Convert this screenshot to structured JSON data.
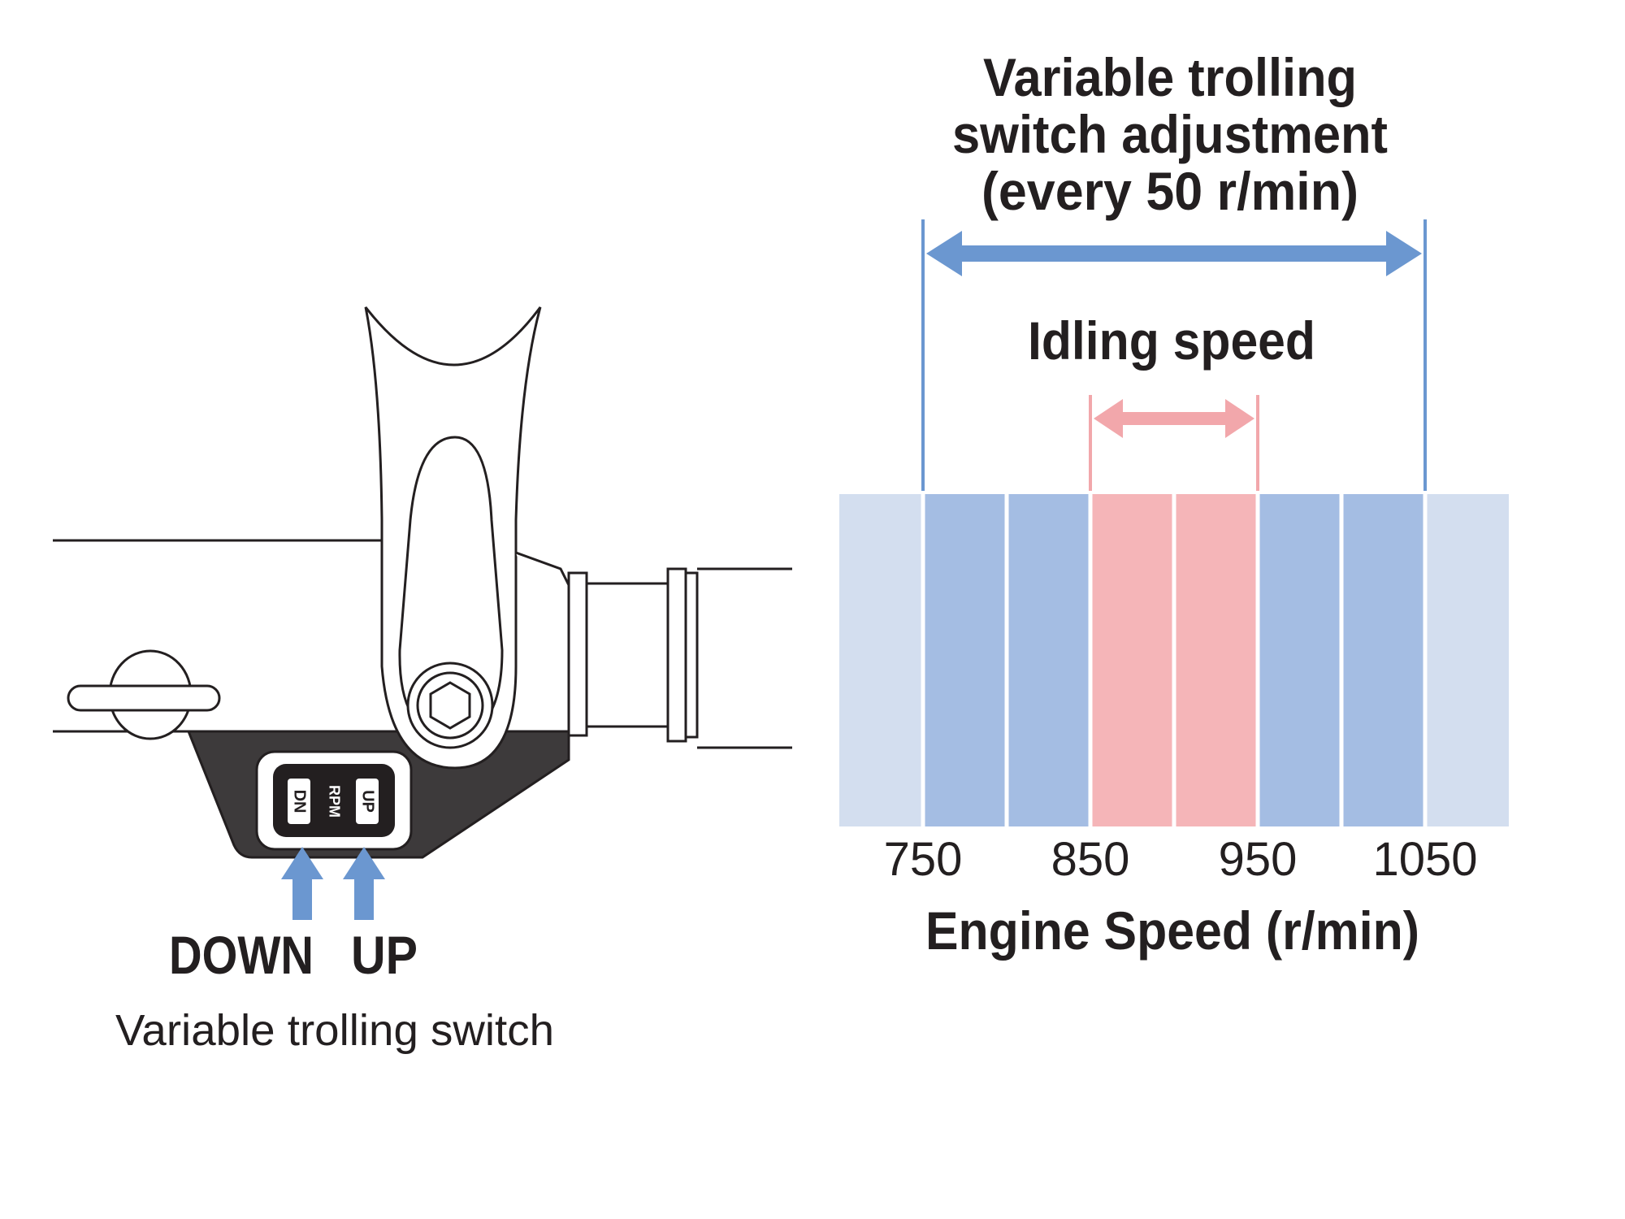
{
  "switch_panel": {
    "down_label": "DOWN",
    "up_label": "UP",
    "caption": "Variable trolling switch",
    "button_dn": "DN",
    "button_rpm": "RPM",
    "button_up": "UP"
  },
  "chart": {
    "adjustment_title_line1": "Variable trolling",
    "adjustment_title_line2": "switch adjustment",
    "adjustment_title_line3": "(every 50 r/min)",
    "idling_title": "Idling speed",
    "xlabel": "Engine Speed (r/min)",
    "colors": {
      "adjust_arrow": "#6b97d0",
      "idle_arrow": "#f2a7ab",
      "band_outer": "#d3deef",
      "band_adjust": "#a4bde3",
      "band_idle": "#f5b5b8"
    }
  },
  "chart_data": {
    "type": "bar",
    "ticks": [
      "750",
      "850",
      "950",
      "1050"
    ],
    "tick_values": [
      750,
      850,
      950,
      1050
    ],
    "step": 50,
    "xlim": [
      700,
      1100
    ],
    "bands": [
      {
        "from": 700,
        "to": 750,
        "kind": "outer"
      },
      {
        "from": 750,
        "to": 800,
        "kind": "adjust"
      },
      {
        "from": 800,
        "to": 850,
        "kind": "adjust"
      },
      {
        "from": 850,
        "to": 900,
        "kind": "idle"
      },
      {
        "from": 900,
        "to": 950,
        "kind": "idle"
      },
      {
        "from": 950,
        "to": 1000,
        "kind": "adjust"
      },
      {
        "from": 1000,
        "to": 1050,
        "kind": "adjust"
      },
      {
        "from": 1050,
        "to": 1100,
        "kind": "outer"
      }
    ],
    "adjustment_range": [
      750,
      1050
    ],
    "idling_range": [
      850,
      950
    ]
  }
}
